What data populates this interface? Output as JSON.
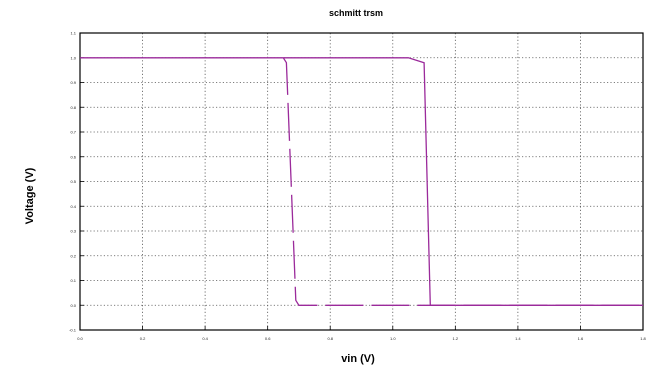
{
  "chart_data": {
    "type": "line",
    "title": "schmitt trsm",
    "xlabel": "vin (V)",
    "ylabel": "Voltage (V)",
    "xlim": [
      0,
      1.8
    ],
    "ylim": [
      -0.1,
      1.1
    ],
    "x_ticks": [
      "0.0",
      "0.2",
      "0.4",
      "0.6",
      "0.8",
      "1.0",
      "1.2",
      "1.4",
      "1.6",
      "1.8"
    ],
    "y_ticks": [
      "-0.1",
      "0.0",
      "0.1",
      "0.2",
      "0.3",
      "0.4",
      "0.5",
      "0.6",
      "0.7",
      "0.8",
      "0.9",
      "1.0",
      "1.1"
    ],
    "grid": true,
    "series_color": "#9b2a9b",
    "series": [
      {
        "name": "",
        "style": "solid",
        "x": [
          0.0,
          0.95,
          1.05,
          1.1,
          1.12,
          1.8
        ],
        "y": [
          1.0,
          1.0,
          1.0,
          0.98,
          0.0,
          0.0
        ]
      },
      {
        "name": "",
        "style": "dashed",
        "x": [
          0.65,
          0.66,
          0.69,
          0.7,
          0.75,
          1.8
        ],
        "y": [
          1.0,
          0.98,
          0.02,
          0.0,
          0.0,
          0.0
        ]
      }
    ]
  }
}
